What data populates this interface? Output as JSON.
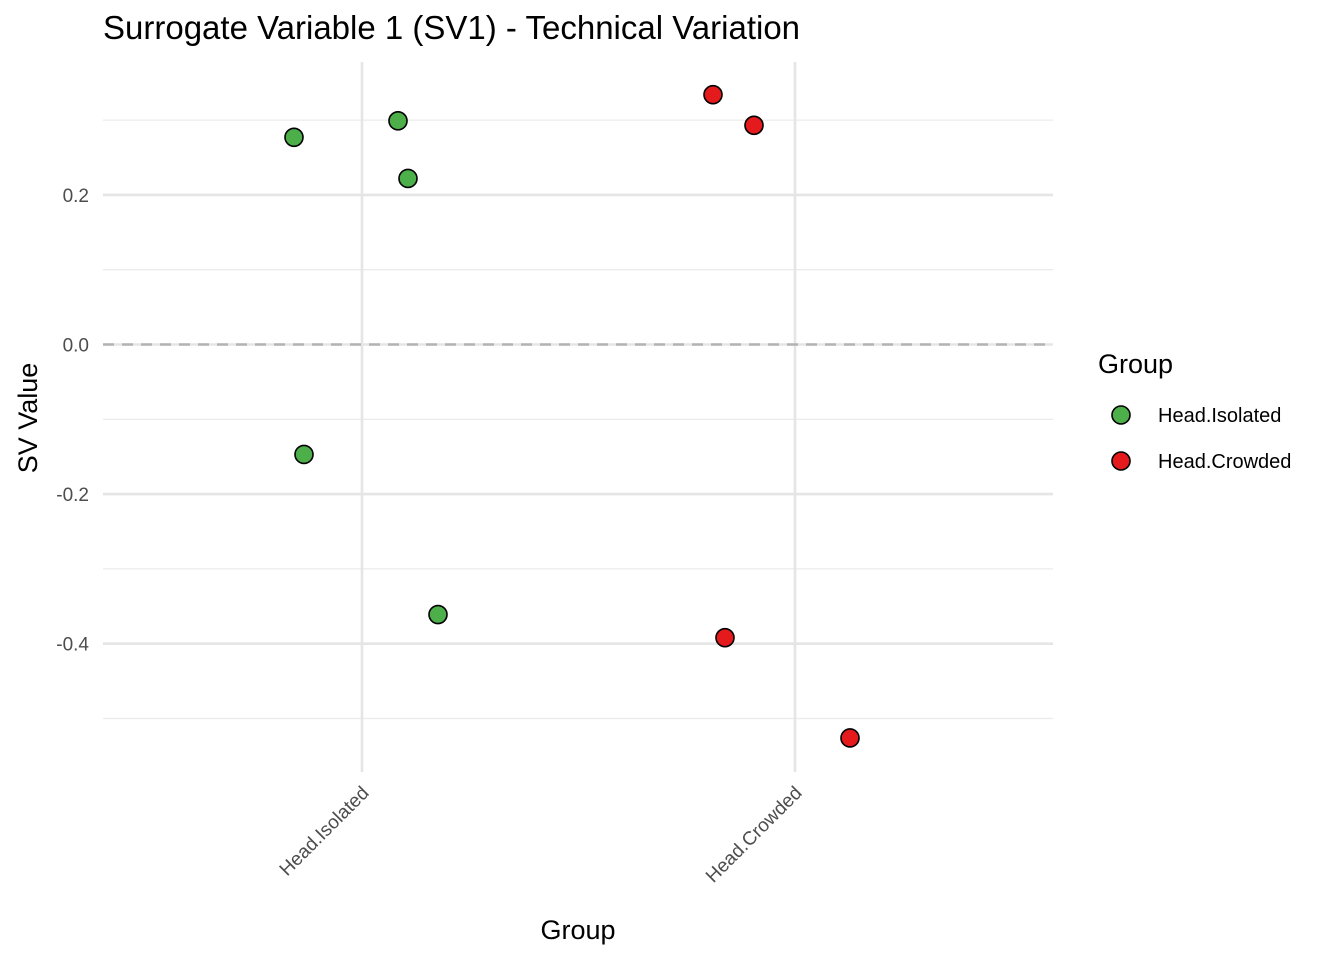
{
  "chart_data": {
    "type": "scatter",
    "title": "Surrogate Variable 1 (SV1) - Technical Variation",
    "xlabel": "Group",
    "ylabel": "SV Value",
    "categories": [
      "Head.Isolated",
      "Head.Crowded"
    ],
    "y_ticks": [
      "0.2",
      "0.0",
      "-0.2",
      "-0.4"
    ],
    "ylim": [
      -0.55,
      0.36
    ],
    "grid": true,
    "reference_line": {
      "y": 0.0,
      "style": "dashed"
    },
    "legend": {
      "title": "Group",
      "position": "right"
    },
    "series": [
      {
        "name": "Head.Isolated",
        "color": "#4DAF4A",
        "points": [
          {
            "category": "Head.Isolated",
            "y": 0.277
          },
          {
            "category": "Head.Isolated",
            "y": 0.299
          },
          {
            "category": "Head.Isolated",
            "y": 0.222
          },
          {
            "category": "Head.Isolated",
            "y": -0.147
          },
          {
            "category": "Head.Isolated",
            "y": -0.361
          }
        ]
      },
      {
        "name": "Head.Crowded",
        "color": "#E41A1C",
        "points": [
          {
            "category": "Head.Crowded",
            "y": 0.334
          },
          {
            "category": "Head.Crowded",
            "y": 0.293
          },
          {
            "category": "Head.Crowded",
            "y": -0.392
          },
          {
            "category": "Head.Crowded",
            "y": -0.526
          }
        ]
      }
    ]
  }
}
